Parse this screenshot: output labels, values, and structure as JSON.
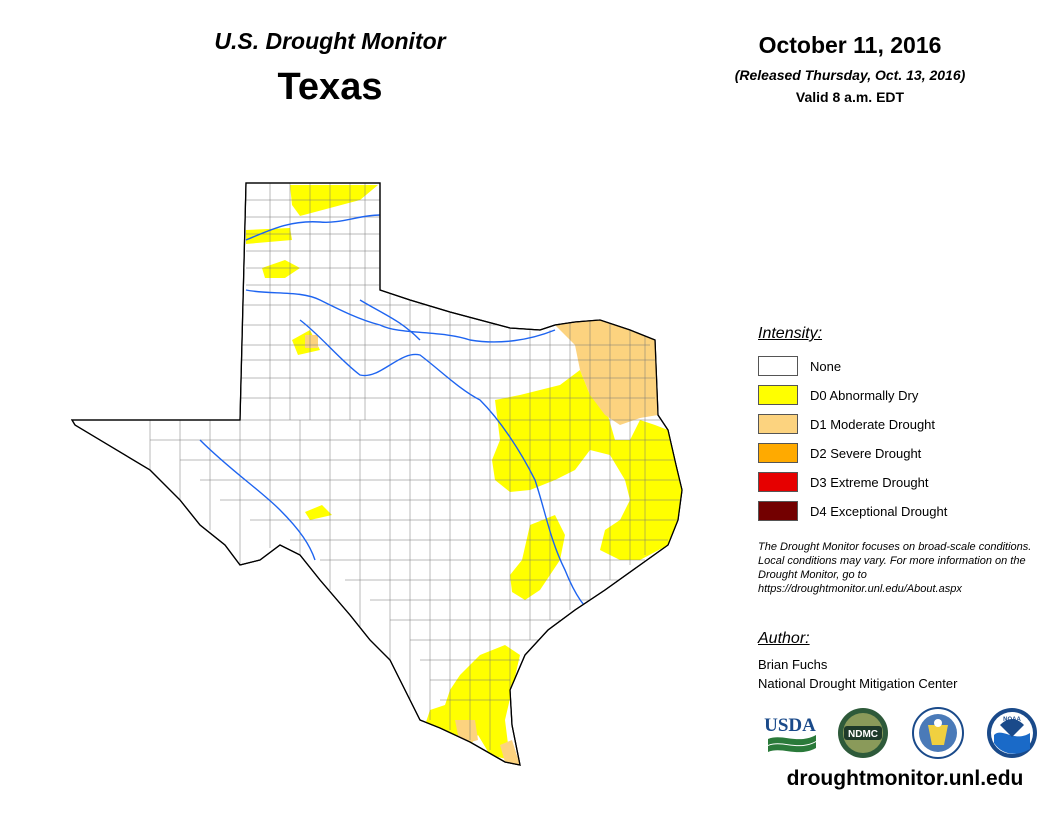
{
  "header": {
    "product": "U.S. Drought Monitor",
    "state": "Texas",
    "date": "October 11, 2016",
    "released": "(Released Thursday, Oct. 13, 2016)",
    "valid": "Valid 8 a.m. EDT"
  },
  "legend": {
    "title": "Intensity:",
    "items": [
      {
        "label": "None",
        "color": "#ffffff"
      },
      {
        "label": "D0 Abnormally Dry",
        "color": "#ffff00"
      },
      {
        "label": "D1 Moderate Drought",
        "color": "#fcd37f"
      },
      {
        "label": "D2 Severe Drought",
        "color": "#ffaa00"
      },
      {
        "label": "D3 Extreme Drought",
        "color": "#e60000"
      },
      {
        "label": "D4 Exceptional Drought",
        "color": "#730000"
      }
    ]
  },
  "note": "The Drought Monitor focuses on broad-scale conditions. Local conditions may vary. For more information on the Drought Monitor, go to https://droughtmonitor.unl.edu/About.aspx",
  "author": {
    "heading": "Author:",
    "name": "Brian Fuchs",
    "organization": "National Drought Mitigation Center"
  },
  "logos": [
    {
      "icon": "usda-logo-icon",
      "text": "USDA"
    },
    {
      "icon": "ndmc-logo-icon",
      "text": "NDMC"
    },
    {
      "icon": "doc-seal-icon",
      "text": ""
    },
    {
      "icon": "noaa-logo-icon",
      "text": "NOAA"
    }
  ],
  "website": "droughtmonitor.unl.edu",
  "map": {
    "icon": "texas-drought-map",
    "river_color": "#1e64f0",
    "county_line_color": "#777777"
  }
}
